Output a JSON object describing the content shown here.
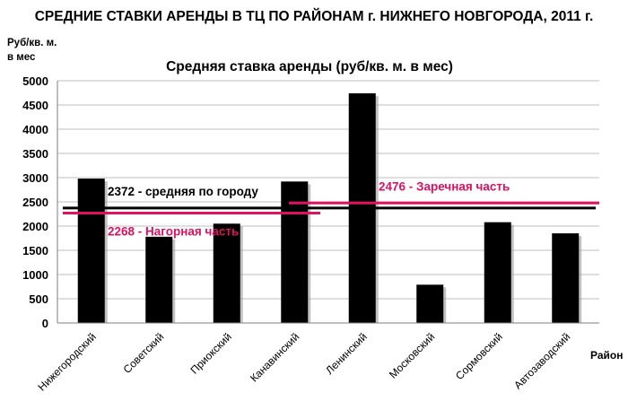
{
  "page_title": "СРЕДНИЕ СТАВКИ АРЕНДЫ В ТЦ ПО РАЙОНАМ г. НИЖНЕГО НОВГОРОДА, 2011 г.",
  "chart_data": {
    "type": "bar",
    "title": "Средняя ставка аренды (руб/кв. м. в мес)",
    "ylabel_line1": "Руб/кв. м.",
    "ylabel_line2": "в мес",
    "xlabel": "Район",
    "categories": [
      "Нижегородский",
      "Советский",
      "Приокский",
      "Канавинский",
      "Ленинский",
      "Московский",
      "Сормовский",
      "Автозаводский"
    ],
    "values": [
      2980,
      1780,
      2050,
      2920,
      4740,
      790,
      2080,
      1850
    ],
    "ylim": [
      0,
      5000
    ],
    "yticks": [
      0,
      500,
      1000,
      1500,
      2000,
      2500,
      3000,
      3500,
      4000,
      4500,
      5000
    ],
    "bar_color": "#000000",
    "reference_lines": [
      {
        "label": "2372 - средняя по городу",
        "value": 2372,
        "color": "#000000",
        "from_category": 0,
        "to_category": 7
      },
      {
        "label": "2268 -  Нагорная часть",
        "value": 2268,
        "color": "#e0115f",
        "from_category": 0,
        "to_category": 3
      },
      {
        "label": "2476 -  Заречная часть",
        "value": 2476,
        "color": "#e0115f",
        "from_category": 3,
        "to_category": 7
      }
    ]
  }
}
